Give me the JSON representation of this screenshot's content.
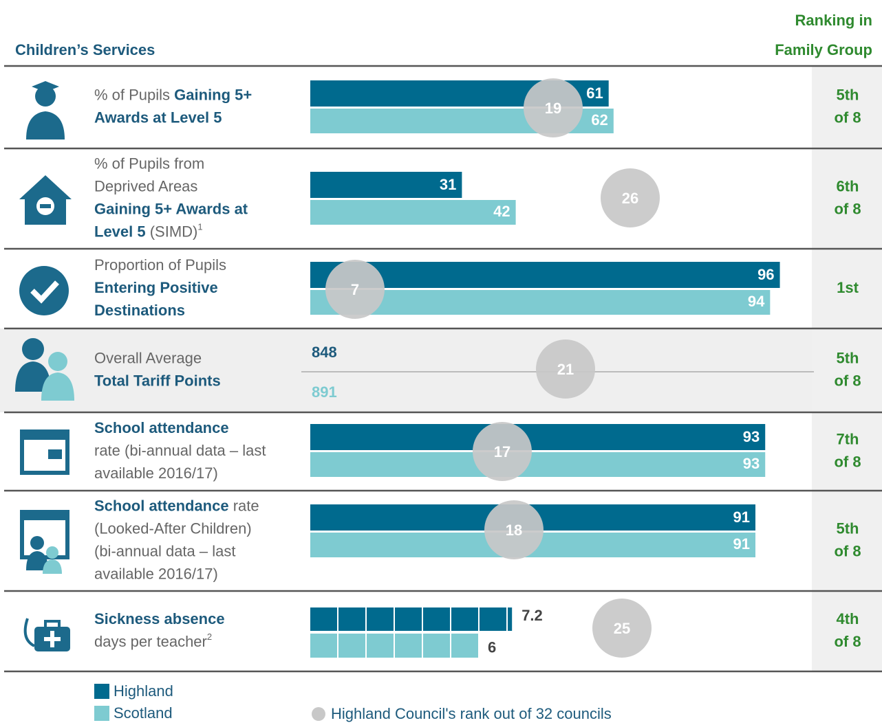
{
  "header": {
    "title": "Children’s Services",
    "ranking_title": [
      "Ranking in",
      "Family Group"
    ]
  },
  "rows": [
    {
      "type": "bars",
      "label": [
        [
          {
            "text": "% of Pupils ",
            "bold": false
          },
          {
            "text": "Gaining 5+",
            "bold": true
          }
        ],
        [
          {
            "text": "Awards at Level 5",
            "bold": true
          }
        ]
      ],
      "highland": 61,
      "scotland": 62,
      "rank": 19,
      "ranking": [
        "5th",
        "of 8"
      ]
    },
    {
      "type": "bars",
      "label": [
        [
          {
            "text": "% of Pupils from",
            "bold": false
          }
        ],
        [
          {
            "text": "Deprived Areas",
            "bold": false
          }
        ],
        [
          {
            "text": "Gaining 5+ Awards at",
            "bold": true
          }
        ],
        [
          {
            "text": "Level 5",
            "bold": true
          },
          {
            "text": " (SIMD)",
            "bold": false
          },
          {
            "text": "1",
            "bold": false,
            "sup": true
          }
        ]
      ],
      "highland": 31,
      "scotland": 42,
      "rank": 26,
      "ranking": [
        "6th",
        "of 8"
      ]
    },
    {
      "type": "bars",
      "label": [
        [
          {
            "text": "Proportion of Pupils",
            "bold": false
          }
        ],
        [
          {
            "text": "Entering Positive",
            "bold": true
          }
        ],
        [
          {
            "text": "Destinations",
            "bold": true
          }
        ]
      ],
      "highland": 96,
      "scotland": 94,
      "rank": 7,
      "ranking": [
        "1st"
      ]
    },
    {
      "type": "number",
      "label": [
        [
          {
            "text": "Overall Average",
            "bold": false
          }
        ],
        [
          {
            "text": "Total Tariff Points",
            "bold": true
          }
        ]
      ],
      "highland": 848,
      "scotland": 891,
      "rank": 21,
      "ranking": [
        "5th",
        "of 8"
      ]
    },
    {
      "type": "bars",
      "label": [
        [
          {
            "text": "School attendance",
            "bold": true
          }
        ],
        [
          {
            "text": "rate (bi-annual data – last",
            "bold": false
          }
        ],
        [
          {
            "text": "available 2016/17)",
            "bold": false
          }
        ]
      ],
      "highland": 93,
      "scotland": 93,
      "rank": 17,
      "ranking": [
        "7th",
        "of 8"
      ]
    },
    {
      "type": "bars",
      "label": [
        [
          {
            "text": "School attendance",
            "bold": true
          },
          {
            "text": " rate",
            "bold": false
          }
        ],
        [
          {
            "text": "(Looked-After Children)",
            "bold": false
          }
        ],
        [
          {
            "text": "(bi-annual data – last",
            "bold": false
          }
        ],
        [
          {
            "text": "available 2016/17)",
            "bold": false
          }
        ]
      ],
      "highland": 91,
      "scotland": 91,
      "rank": 18,
      "ranking": [
        "5th",
        "of 8"
      ]
    },
    {
      "type": "squares",
      "label": [
        [
          {
            "text": "Sickness absence",
            "bold": true
          }
        ],
        [
          {
            "text": "days per teacher",
            "bold": false
          },
          {
            "text": "2",
            "bold": false,
            "sup": true
          }
        ]
      ],
      "highland": 7.2,
      "scotland": 6,
      "rank": 25,
      "ranking": [
        "4th",
        "of 8"
      ]
    }
  ],
  "legend": [
    {
      "label": "Highland",
      "color": "#006a8e"
    },
    {
      "label": "Scotland",
      "color": "#7ecbd1"
    }
  ],
  "rank_note": {
    "label": "Highland Council's rank out of 32 councils",
    "color": "#c8c8c8"
  }
}
